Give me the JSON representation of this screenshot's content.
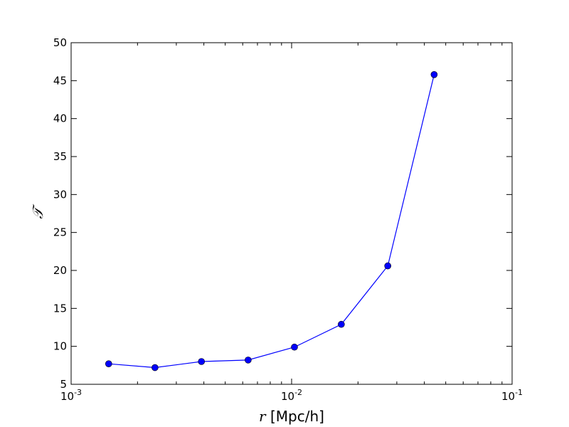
{
  "chart_data": {
    "type": "line",
    "x_scale": "log",
    "xlim": [
      0.001,
      0.1
    ],
    "ylim": [
      5,
      50
    ],
    "x_ticks": [
      {
        "value": 0.001,
        "base": "10",
        "exp": "-3"
      },
      {
        "value": 0.01,
        "base": "10",
        "exp": "-2"
      },
      {
        "value": 0.1,
        "base": "10",
        "exp": "-1"
      }
    ],
    "y_ticks": [
      5,
      10,
      15,
      20,
      25,
      30,
      35,
      40,
      45,
      50
    ],
    "xlabel": {
      "symbol": "r",
      "unit": " [Mpc/h]"
    },
    "ylabel": "𝒯",
    "grid": false,
    "series": [
      {
        "color": "#0000ff",
        "marker": "circle",
        "x": [
          0.00148,
          0.0024,
          0.0039,
          0.00635,
          0.0103,
          0.0168,
          0.0273,
          0.0443
        ],
        "y": [
          7.7,
          7.2,
          8.0,
          8.2,
          9.9,
          12.9,
          20.6,
          45.8
        ]
      }
    ]
  }
}
